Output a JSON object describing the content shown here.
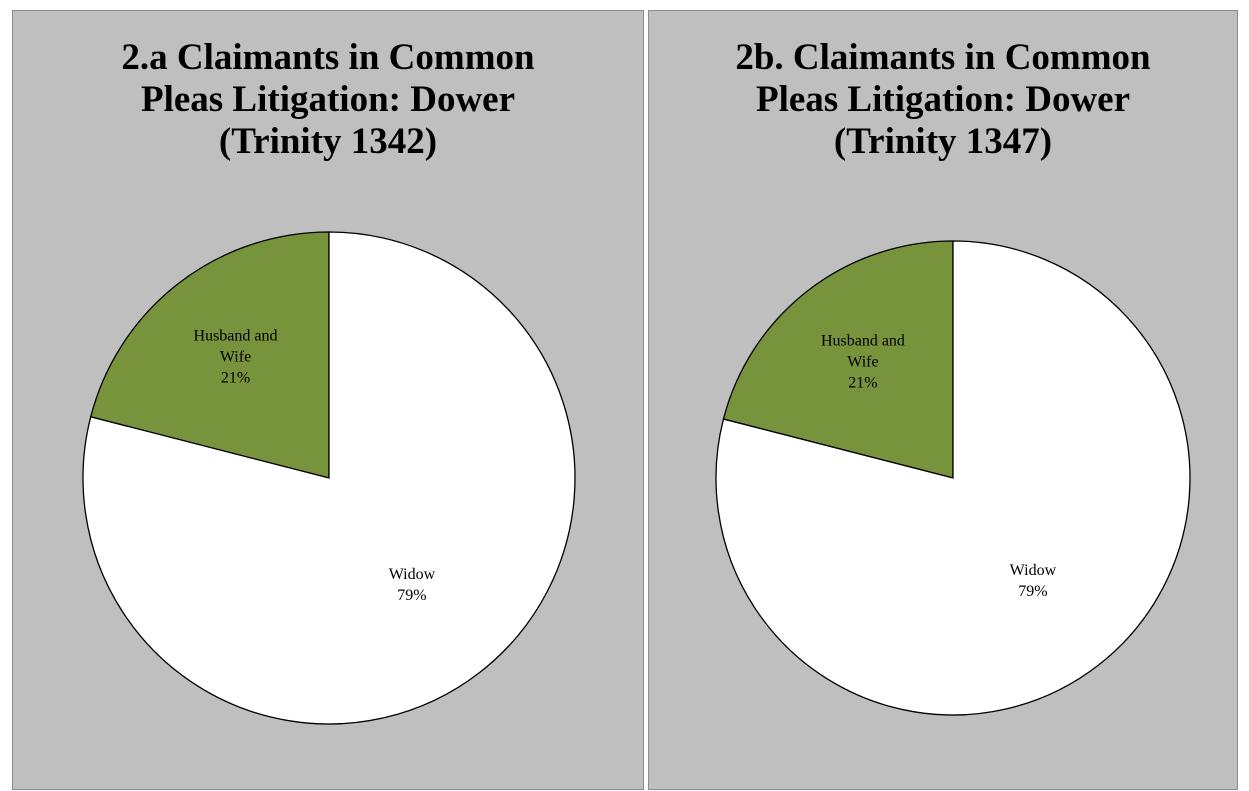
{
  "chart_data": [
    {
      "type": "pie",
      "title": "2.a Claimants in Common Pleas Litigation: Dower (Trinity 1342)",
      "categories": [
        "Husband and Wife",
        "Widow"
      ],
      "values": [
        21,
        79
      ],
      "value_labels": [
        "21%",
        "79%"
      ],
      "colors": [
        "#77933c",
        "#ffffff"
      ],
      "start": "top",
      "direction": "counterclockwise"
    },
    {
      "type": "pie",
      "title": "2b. Claimants in Common Pleas Litigation: Dower (Trinity 1347)",
      "categories": [
        "Husband and Wife",
        "Widow"
      ],
      "values": [
        21,
        79
      ],
      "value_labels": [
        "21%",
        "79%"
      ],
      "colors": [
        "#77933c",
        "#ffffff"
      ],
      "start": "top",
      "direction": "counterclockwise"
    }
  ]
}
